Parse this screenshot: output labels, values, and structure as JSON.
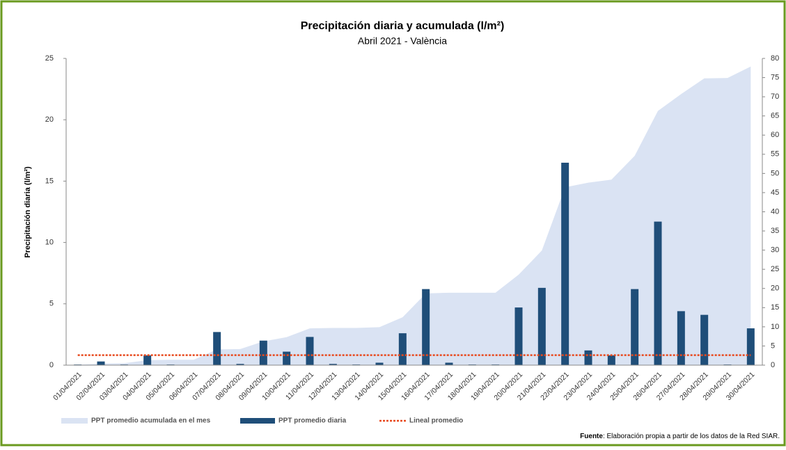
{
  "chart_data": {
    "type": "combo",
    "title": "Precipitación diaria y acumulada (l/m²)",
    "subtitle": "Abril 2021 - València",
    "y_label": "Precipitación diaria (l/m²)",
    "categories": [
      "01/04/2021",
      "02/04/2021",
      "03/04/2021",
      "04/04/2021",
      "05/04/2021",
      "06/04/2021",
      "07/04/2021",
      "08/04/2021",
      "09/04/2021",
      "10/04/2021",
      "11/04/2021",
      "12/04/2021",
      "13/04/2021",
      "14/04/2021",
      "15/04/2021",
      "16/04/2021",
      "17/04/2021",
      "18/04/2021",
      "19/04/2021",
      "20/04/2021",
      "21/04/2021",
      "22/04/2021",
      "23/04/2021",
      "24/04/2021",
      "25/04/2021",
      "26/04/2021",
      "27/04/2021",
      "28/04/2021",
      "29/04/2021",
      "30/04/2021"
    ],
    "series": [
      {
        "name": "PPT promedio acumulada en el mes",
        "type": "area",
        "axis": "y2",
        "color": "#dae3f3",
        "values": [
          0.1,
          0.4,
          0.5,
          1.3,
          1.4,
          1.4,
          4.1,
          4.2,
          6.2,
          7.3,
          9.6,
          9.7,
          9.7,
          9.9,
          12.5,
          18.7,
          18.9,
          18.9,
          18.9,
          23.6,
          29.9,
          46.4,
          47.6,
          48.4,
          54.6,
          66.3,
          70.7,
          74.8,
          74.9,
          77.9
        ]
      },
      {
        "name": "PPT promedio diaria",
        "type": "bar",
        "color": "#1f4e79",
        "values": [
          0.05,
          0.3,
          0.05,
          0.8,
          0.05,
          0,
          2.7,
          0.1,
          2.0,
          1.1,
          2.3,
          0.1,
          0.05,
          0.2,
          2.6,
          6.2,
          0.2,
          0.05,
          0.05,
          4.7,
          6.3,
          16.5,
          1.2,
          0.8,
          6.2,
          11.7,
          4.4,
          4.1,
          0.05,
          3.0
        ]
      },
      {
        "name": "Lineal promedio",
        "type": "line",
        "axis": "y2",
        "color": "#e8491d",
        "dashed": true,
        "values": [
          2.6,
          2.6,
          2.6,
          2.6,
          2.6,
          2.6,
          2.6,
          2.6,
          2.6,
          2.6,
          2.6,
          2.6,
          2.6,
          2.6,
          2.6,
          2.6,
          2.6,
          2.6,
          2.6,
          2.6,
          2.6,
          2.6,
          2.6,
          2.6,
          2.6,
          2.6,
          2.6,
          2.6,
          2.6,
          2.6
        ]
      }
    ],
    "ylim": [
      0,
      25
    ],
    "yticks": [
      0,
      5,
      10,
      15,
      20,
      25
    ],
    "y2lim": [
      0,
      80
    ],
    "y2ticks": [
      0,
      5,
      10,
      15,
      20,
      25,
      30,
      35,
      40,
      45,
      50,
      55,
      60,
      65,
      70,
      75,
      80
    ],
    "grid": false,
    "legend": "bottom",
    "source_label": "Fuente",
    "source_text": ": Elaboración propia a partir de los datos de la Red SIAR."
  }
}
